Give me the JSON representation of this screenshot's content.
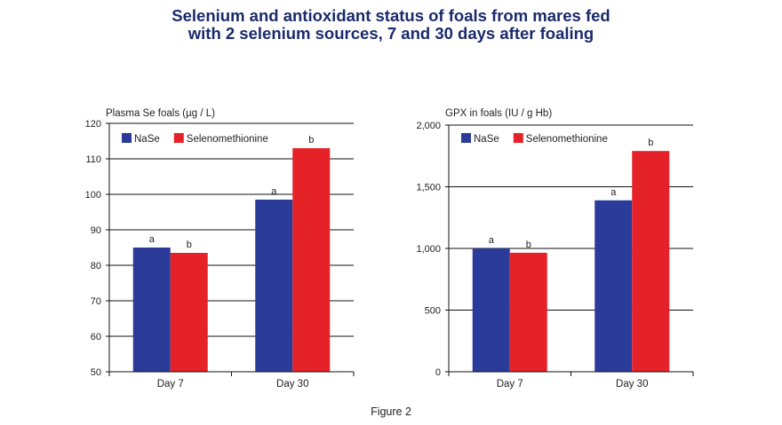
{
  "title_line1": "Selenium and antioxidant status of foals from mares fed",
  "title_line2": "with 2 selenium sources, 7 and 30 days after foaling",
  "caption": "Figure 2",
  "colors": {
    "NaSe": "#2b3b9a",
    "Selenomethionine": "#e52228"
  },
  "chart_data": [
    {
      "type": "bar",
      "ylabel": "Plasma Se foals (µg / L)",
      "categories": [
        "Day 7",
        "Day 30"
      ],
      "series": [
        {
          "name": "NaSe",
          "values": [
            85,
            98.5
          ],
          "labels": [
            "a",
            "a"
          ]
        },
        {
          "name": "Selenomethionine",
          "values": [
            83.5,
            113
          ],
          "labels": [
            "b",
            "b"
          ]
        }
      ],
      "ylim": [
        50,
        120
      ],
      "yticks": [
        50,
        60,
        70,
        80,
        90,
        100,
        110,
        120
      ],
      "ytick_labels": [
        "50",
        "60",
        "70",
        "80",
        "90",
        "100",
        "110",
        "120"
      ],
      "grid": true,
      "legend": "top-left"
    },
    {
      "type": "bar",
      "ylabel": "GPX in foals (IU / g Hb)",
      "categories": [
        "Day 7",
        "Day 30"
      ],
      "series": [
        {
          "name": "NaSe",
          "values": [
            1000,
            1390
          ],
          "labels": [
            "a",
            "a"
          ]
        },
        {
          "name": "Selenomethionine",
          "values": [
            965,
            1790
          ],
          "labels": [
            "b",
            "b"
          ]
        }
      ],
      "ylim": [
        0,
        2000
      ],
      "yticks": [
        0,
        500,
        1000,
        1500,
        2000
      ],
      "ytick_labels": [
        "0",
        "500",
        "1,000",
        "1,500",
        "2,000"
      ],
      "grid": true,
      "legend": "top-left"
    }
  ]
}
